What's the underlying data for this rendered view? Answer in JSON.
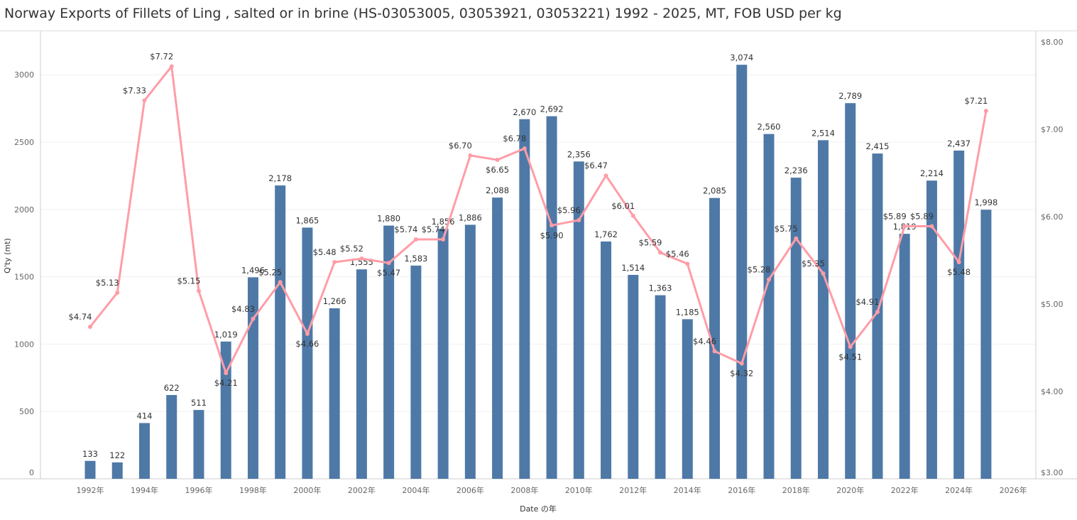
{
  "title": "Norway Exports of Fillets of Ling , salted or in brine (HS-03053005, 03053921, 03053221) 1992 - 2025, MT, FOB USD per kg",
  "chart_data": {
    "type": "bar+line",
    "title": "Norway Exports of Fillets of Ling , salted or in brine (HS-03053005, 03053921, 03053221) 1992 - 2025, MT, FOB USD per kg",
    "xlabel": "Date の年",
    "ylabel": "Q'ty (mt)",
    "x": [
      1992,
      1993,
      1994,
      1995,
      1996,
      1997,
      1998,
      1999,
      2000,
      2001,
      2002,
      2003,
      2004,
      2005,
      2006,
      2007,
      2008,
      2009,
      2010,
      2011,
      2012,
      2013,
      2014,
      2015,
      2016,
      2017,
      2018,
      2019,
      2020,
      2021,
      2022,
      2023,
      2024,
      2025
    ],
    "x_ticks": [
      "1992年",
      "1994年",
      "1996年",
      "1998年",
      "2000年",
      "2002年",
      "2004年",
      "2006年",
      "2008年",
      "2010年",
      "2012年",
      "2014年",
      "2016年",
      "2018年",
      "2020年",
      "2022年",
      "2024年",
      "2026年"
    ],
    "y_ticks": [
      "0",
      "500",
      "1000",
      "1500",
      "2000",
      "2500",
      "3000"
    ],
    "y2_ticks": [
      "$3.00",
      "$4.00",
      "$5.00",
      "$6.00",
      "$7.00",
      "$8.00"
    ],
    "ylim": [
      0,
      3300
    ],
    "y2lim": [
      3.0,
      8.1
    ],
    "grid": true,
    "series": [
      {
        "type": "bar",
        "axis": "left",
        "color": "#4e79a7",
        "values": [
          133,
          122,
          414,
          622,
          511,
          1019,
          1496,
          2178,
          1865,
          1266,
          1555,
          1880,
          1583,
          1856,
          1886,
          2088,
          2670,
          2692,
          2356,
          1762,
          1514,
          1363,
          1185,
          2085,
          3074,
          2560,
          2236,
          2514,
          2789,
          2415,
          1819,
          2214,
          2437,
          1998
        ],
        "labels": [
          "133",
          "122",
          "414",
          "622",
          "511",
          "1,019",
          "1,496",
          "2,178",
          "1,865",
          "1,266",
          "1,555",
          "1,880",
          "1,583",
          "1,856",
          "1,886",
          "2,088",
          "2,670",
          "2,692",
          "2,356",
          "1,762",
          "1,514",
          "1,363",
          "1,185",
          "2,085",
          "3,074",
          "2,560",
          "2,236",
          "2,514",
          "2,789",
          "2,415",
          "1,819",
          "2,214",
          "2,437",
          "1,998"
        ]
      },
      {
        "type": "line",
        "axis": "right",
        "color": "#ff9da7",
        "values": [
          4.74,
          5.13,
          7.33,
          7.72,
          5.15,
          4.21,
          4.83,
          5.25,
          4.66,
          5.48,
          5.52,
          5.47,
          5.74,
          5.74,
          6.7,
          6.65,
          6.78,
          5.9,
          5.96,
          6.47,
          6.01,
          5.59,
          5.46,
          4.46,
          4.32,
          5.28,
          5.75,
          5.35,
          4.51,
          4.91,
          5.89,
          5.89,
          5.48,
          7.21
        ],
        "labels": [
          "$4.74",
          "$5.13",
          "$7.33",
          "$7.72",
          "$5.15",
          "$4.21",
          "$4.83",
          "$5.25",
          "$4.66",
          "$5.48",
          "$5.52",
          "$5.47",
          "$5.74",
          "$5.74",
          "$6.70",
          "$6.65",
          "$6.78",
          "$5.90",
          "$5.96",
          "$6.47",
          "$6.01",
          "$5.59",
          "$5.46",
          "$4.46",
          "$4.32",
          "$5.28",
          "$5.75",
          "$5.35",
          "$4.51",
          "$4.91",
          "$5.89",
          "$5.89",
          "$5.48",
          "$7.21"
        ]
      }
    ]
  }
}
